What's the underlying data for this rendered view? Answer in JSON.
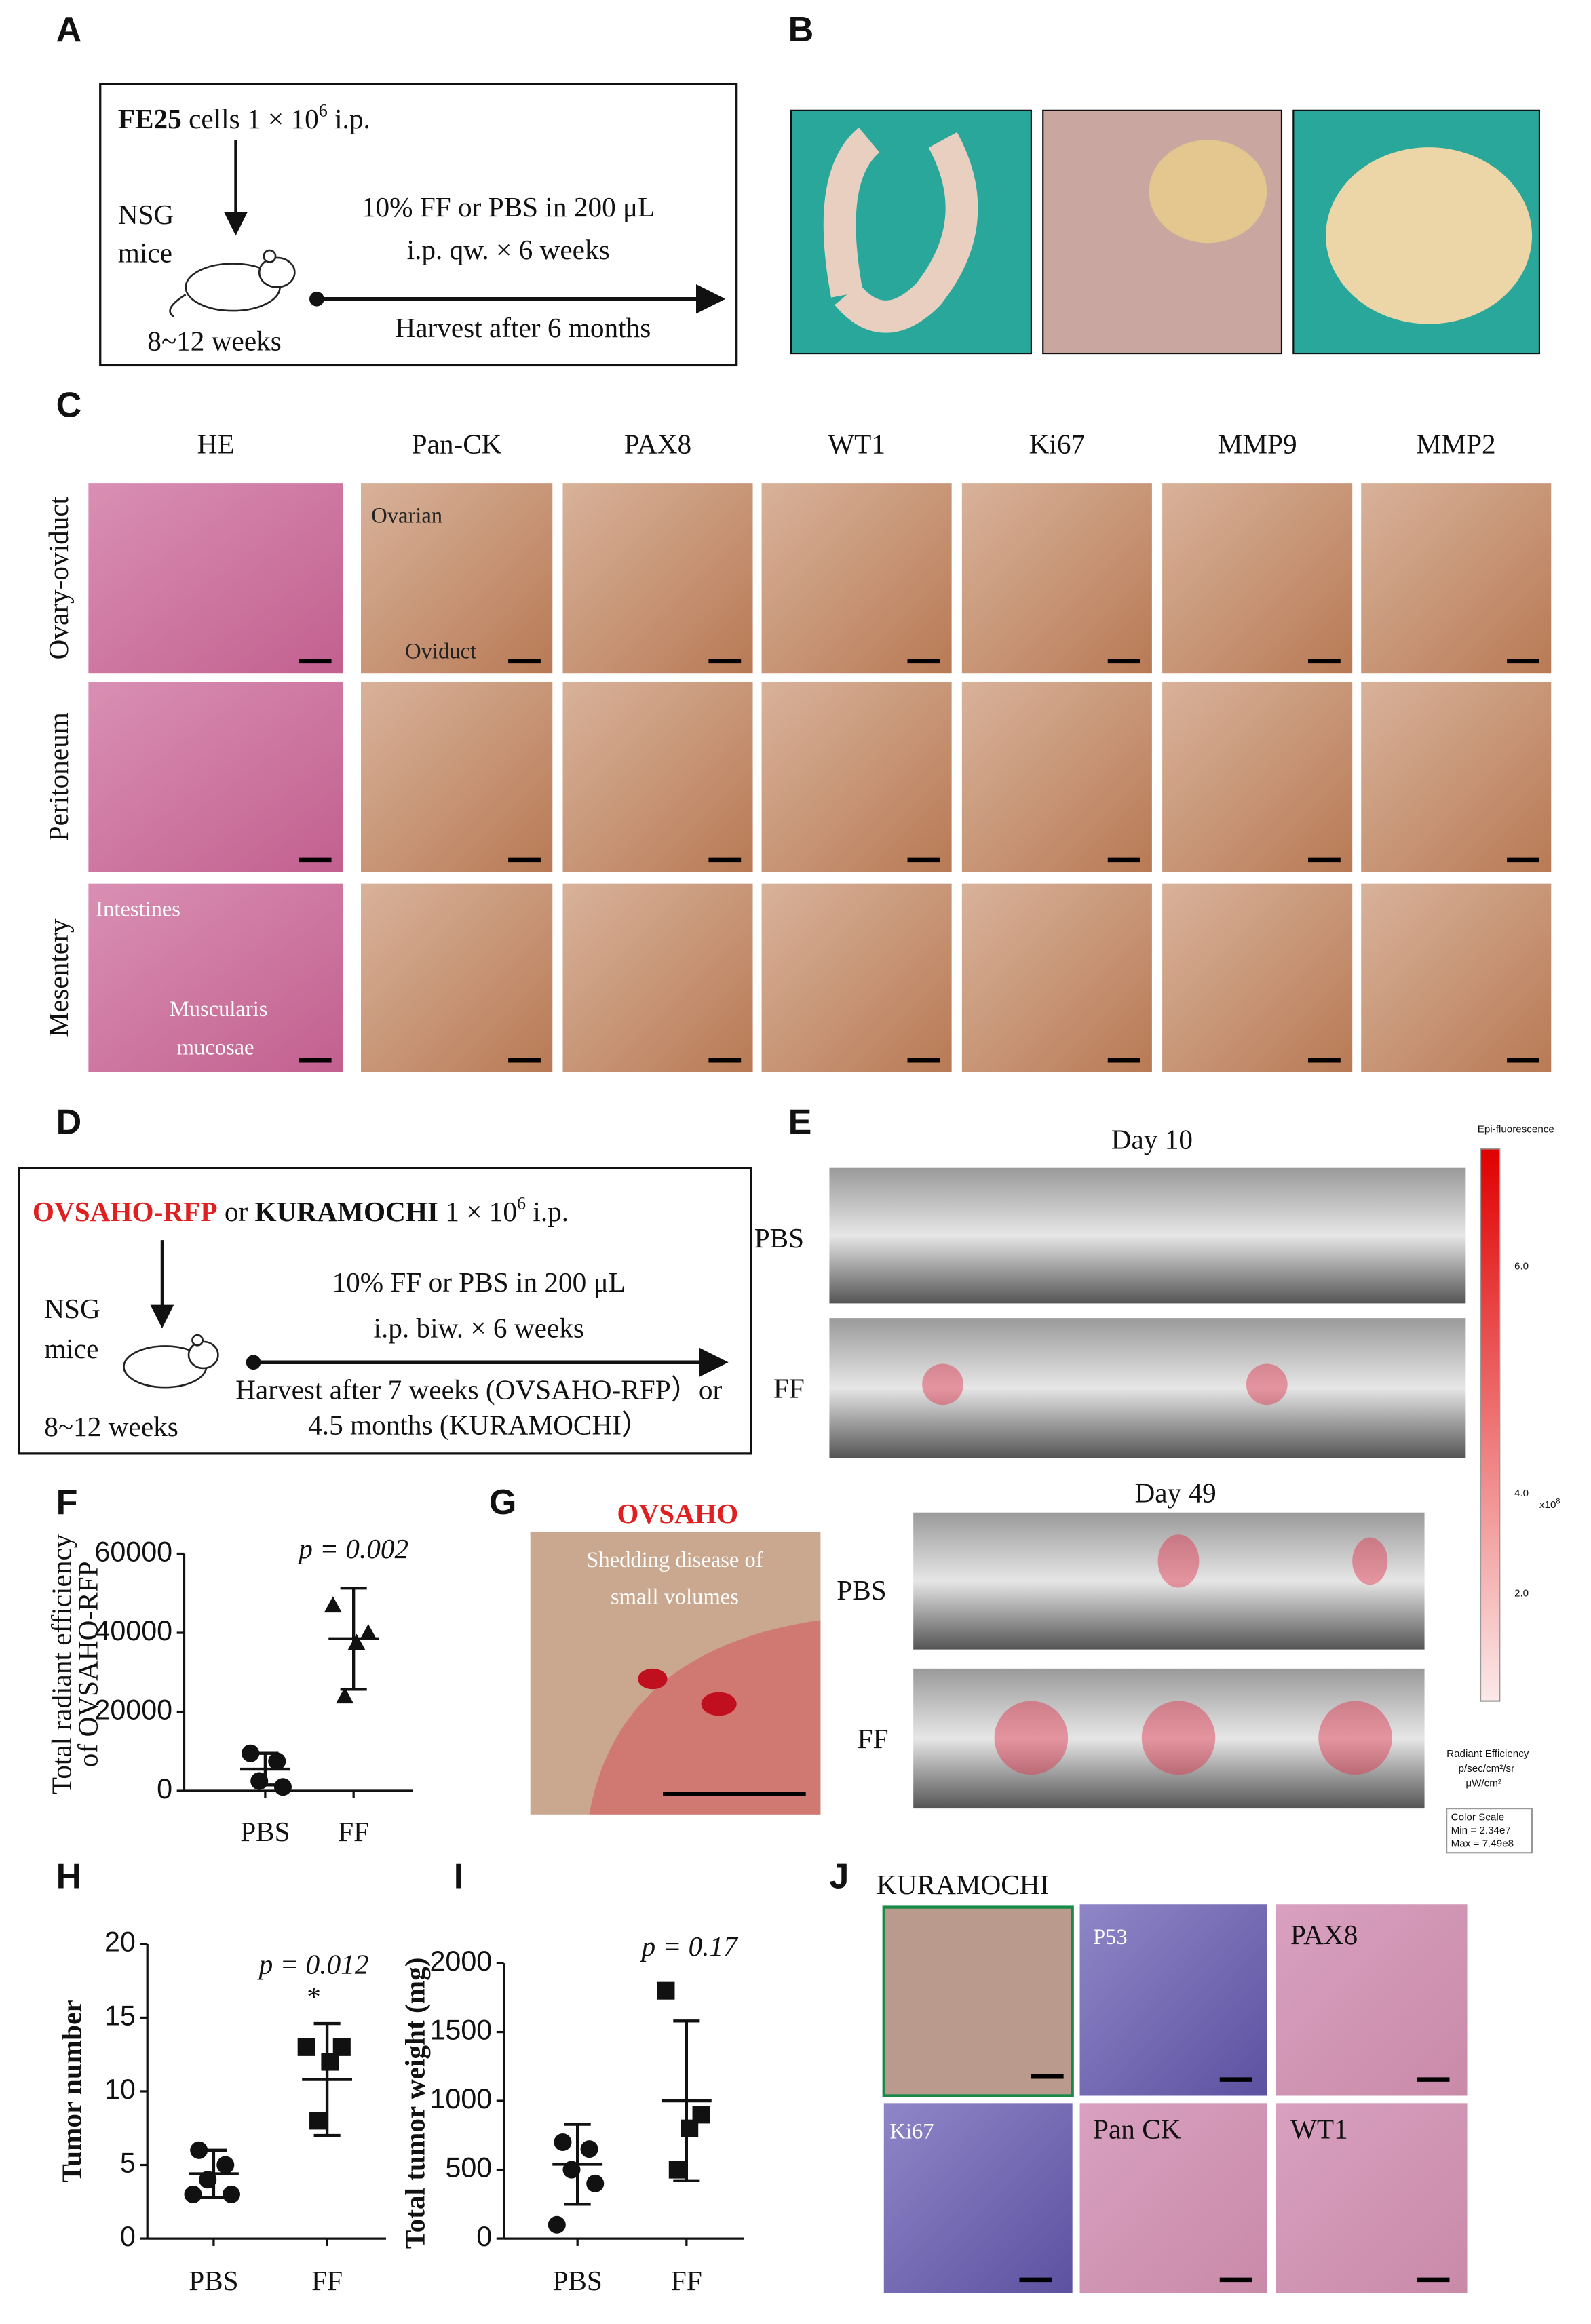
{
  "figure": {
    "panel_labels": [
      "A",
      "B",
      "C",
      "D",
      "E",
      "F",
      "G",
      "H",
      "I",
      "J"
    ],
    "A": {
      "cells": "FE25",
      "dose": " cells 1 × 10",
      "exp": "6",
      "route": "  i.p.",
      "strain": [
        "NSG",
        "mice"
      ],
      "age": "8~12 weeks",
      "treatment": [
        "10% FF or PBS in 200 μL",
        "i.p. qw. × 6 weeks"
      ],
      "harvest": "Harvest after 6 months"
    },
    "C": {
      "columns": [
        "HE",
        "Pan-CK",
        "PAX8",
        "WT1",
        "Ki67",
        "MMP9",
        "MMP2"
      ],
      "rows": [
        "Ovary-oviduct",
        "Peritoneum",
        "Mesentery"
      ],
      "overlays": [
        "Ovarian",
        "Oviduct",
        "Intestines",
        "Muscularis",
        "mucosae"
      ]
    },
    "D": {
      "line1": [
        "OVSAHO-RFP",
        " or ",
        "KURAMOCHI",
        "  1 × 10",
        "6",
        "  i.p."
      ],
      "strain": [
        "NSG",
        "mice"
      ],
      "age": "8~12 weeks",
      "treatment": [
        "10% FF or PBS in 200 μL",
        "i.p. biw. × 6 weeks"
      ],
      "harvest": [
        "Harvest after 7 weeks (OVSAHO-RFP）or",
        "4.5 months (KURAMOCHI）"
      ]
    },
    "E": {
      "days": [
        "Day 10",
        "Day 49"
      ],
      "rows": [
        "PBS",
        "FF",
        "PBS",
        "FF"
      ],
      "scale_title": "Epi-fluorescence",
      "scale_ticks": [
        "6.0",
        "4.0",
        "2.0"
      ],
      "scale_unit": "x10",
      "scale_exp": "8",
      "scale_caption": [
        "Radiant Efficiency",
        "p/sec/cm²/sr",
        "μW/cm²"
      ],
      "color_scale": [
        "Color Scale",
        "Min = 2.34e7",
        "Max = 7.49e8"
      ]
    },
    "G": {
      "title": "OVSAHO",
      "caption": [
        "Shedding disease of",
        "small volumes"
      ]
    },
    "J": {
      "title": "KURAMOCHI",
      "stains": [
        "P53",
        "PAX8",
        "Ki67",
        "Pan CK",
        "WT1"
      ]
    }
  },
  "chart_data": [
    {
      "type": "scatter",
      "y_label": [
        "Total radiant efficiency",
        "of OVSAHO-RFP"
      ],
      "categories": [
        "PBS",
        "FF"
      ],
      "points": [
        [
          9500,
          7500,
          2500,
          1000
        ],
        [
          47000,
          40000,
          37500,
          24000
        ]
      ],
      "means": [
        5500,
        38500
      ],
      "sds": [
        4000,
        12800
      ],
      "markers": [
        "circle",
        "triangle"
      ],
      "p_label": "p = 0.002",
      "ylim": [
        0,
        60000
      ],
      "yticks": [
        0,
        20000,
        40000,
        60000
      ]
    },
    {
      "type": "scatter",
      "y_label": [
        "Tumor number"
      ],
      "categories": [
        "PBS",
        "FF"
      ],
      "points": [
        [
          6,
          5,
          4,
          3,
          3
        ],
        [
          13,
          13,
          12,
          8
        ]
      ],
      "means": [
        4.4,
        10.8
      ],
      "sds": [
        1.6,
        3.8
      ],
      "markers": [
        "circle",
        "square"
      ],
      "p_label": "p = 0.012",
      "asterisk": "*",
      "ylim": [
        0,
        20
      ],
      "yticks": [
        0,
        5,
        10,
        15,
        20
      ]
    },
    {
      "type": "scatter",
      "y_label": [
        "Total tumor weight (mg)"
      ],
      "categories": [
        "PBS",
        "FF"
      ],
      "points": [
        [
          700,
          650,
          500,
          400,
          100
        ],
        [
          1800,
          900,
          800,
          500
        ]
      ],
      "means": [
        540,
        1000
      ],
      "sds": [
        290,
        580
      ],
      "markers": [
        "circle",
        "square"
      ],
      "p_label": "p = 0.17",
      "ylim": [
        0,
        2000
      ],
      "yticks": [
        0,
        500,
        1000,
        1500,
        2000
      ]
    }
  ]
}
